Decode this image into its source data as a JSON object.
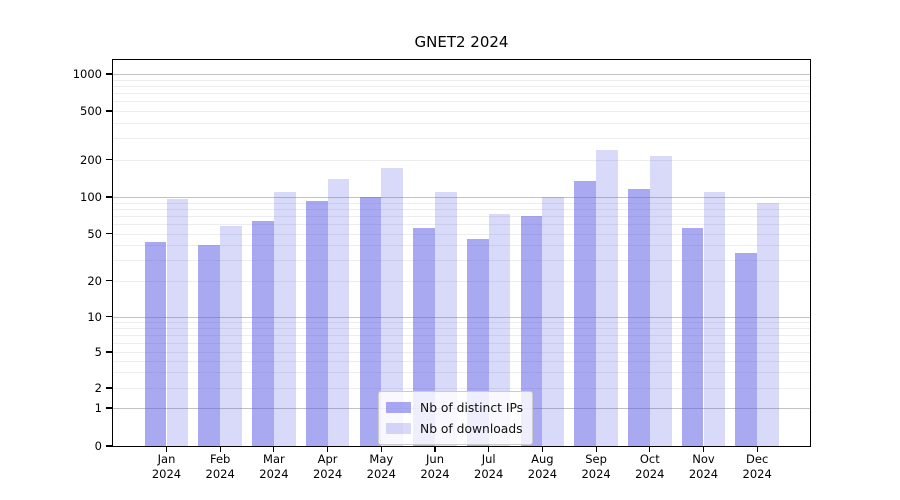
{
  "title": "GNET2 2024",
  "legend": {
    "items": [
      {
        "label": "Nb of distinct IPs",
        "color": "rgba(90,90,230,0.52)"
      },
      {
        "label": "Nb of downloads",
        "color": "rgba(90,90,230,0.23)"
      }
    ]
  },
  "axes": {
    "y_ticks": [
      {
        "value": 1000,
        "label": "1000"
      },
      {
        "value": 500,
        "label": "500"
      },
      {
        "value": 200,
        "label": "200"
      },
      {
        "value": 100,
        "label": "100"
      },
      {
        "value": 50,
        "label": "50"
      },
      {
        "value": 20,
        "label": "20"
      },
      {
        "value": 10,
        "label": "10"
      },
      {
        "value": 5,
        "label": "5"
      },
      {
        "value": 2,
        "label": "2"
      },
      {
        "value": 1,
        "label": "1"
      },
      {
        "value": 0,
        "label": "0"
      }
    ],
    "x_ticks": [
      {
        "line1": "Jan",
        "line2": "2024"
      },
      {
        "line1": "Feb",
        "line2": "2024"
      },
      {
        "line1": "Mar",
        "line2": "2024"
      },
      {
        "line1": "Apr",
        "line2": "2024"
      },
      {
        "line1": "May",
        "line2": "2024"
      },
      {
        "line1": "Jun",
        "line2": "2024"
      },
      {
        "line1": "Jul",
        "line2": "2024"
      },
      {
        "line1": "Aug",
        "line2": "2024"
      },
      {
        "line1": "Sep",
        "line2": "2024"
      },
      {
        "line1": "Oct",
        "line2": "2024"
      },
      {
        "line1": "Nov",
        "line2": "2024"
      },
      {
        "line1": "Dec",
        "line2": "2024"
      }
    ]
  },
  "chart_data": {
    "type": "bar",
    "title": "GNET2 2024",
    "xlabel": "",
    "ylabel": "",
    "yscale": "symlog",
    "ylim": [
      0,
      1300
    ],
    "y_tick_values": [
      0,
      1,
      2,
      5,
      10,
      20,
      50,
      100,
      200,
      500,
      1000
    ],
    "grid": true,
    "legend_position": "lower center",
    "categories": [
      "Jan 2024",
      "Feb 2024",
      "Mar 2024",
      "Apr 2024",
      "May 2024",
      "Jun 2024",
      "Jul 2024",
      "Aug 2024",
      "Sep 2024",
      "Oct 2024",
      "Nov 2024",
      "Dec 2024"
    ],
    "series": [
      {
        "name": "Nb of distinct IPs",
        "color": "rgba(90,90,230,0.52)",
        "values": [
          42,
          40,
          64,
          93,
          100,
          55,
          45,
          70,
          135,
          115,
          56,
          34
        ]
      },
      {
        "name": "Nb of downloads",
        "color": "rgba(90,90,230,0.23)",
        "values": [
          97,
          58,
          110,
          140,
          170,
          110,
          72,
          100,
          240,
          215,
          110,
          90
        ]
      }
    ]
  }
}
